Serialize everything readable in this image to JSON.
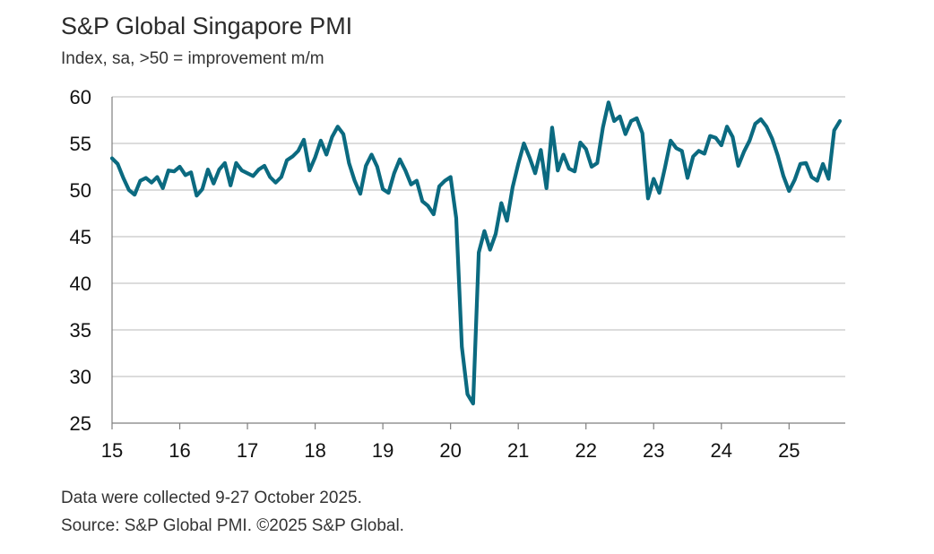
{
  "header": {
    "title": "S&P Global Singapore PMI",
    "subtitle": "Index, sa, >50 = improvement m/m"
  },
  "footer": {
    "note": "Data were collected 9-27 October 2025.",
    "source": "Source: S&P Global PMI. ©2025 S&P Global."
  },
  "colors": {
    "line": "#0b6a80",
    "grid": "#c8c8c8",
    "axis": "#7f7f7f"
  },
  "chart_data": {
    "type": "line",
    "title": "S&P Global Singapore PMI",
    "ylabel": "Index, sa, >50 = improvement m/m",
    "xlabel": "",
    "ylim": [
      25,
      60
    ],
    "yticks": [
      "25",
      "30",
      "35",
      "40",
      "45",
      "50",
      "55",
      "60"
    ],
    "xlim": [
      2015,
      2025.83
    ],
    "xticks": [
      "15",
      "16",
      "17",
      "18",
      "19",
      "20",
      "21",
      "22",
      "23",
      "24",
      "25"
    ],
    "grid": true,
    "series": [
      {
        "name": "Singapore PMI",
        "start_year": 2015,
        "freq": "monthly",
        "values": [
          53.4,
          52.8,
          51.3,
          50.0,
          49.5,
          51.0,
          51.3,
          50.8,
          51.4,
          50.2,
          52.1,
          52.0,
          52.5,
          51.6,
          51.9,
          49.4,
          50.1,
          52.2,
          50.7,
          52.2,
          52.9,
          50.5,
          52.9,
          52.1,
          51.8,
          51.5,
          52.2,
          52.6,
          51.4,
          50.8,
          51.4,
          53.2,
          53.6,
          54.2,
          55.4,
          52.1,
          53.5,
          55.3,
          53.8,
          55.7,
          56.8,
          56.0,
          52.9,
          51.0,
          49.6,
          52.6,
          53.8,
          52.5,
          50.1,
          49.7,
          51.8,
          53.3,
          52.1,
          50.6,
          51.0,
          48.8,
          48.3,
          47.4,
          50.4,
          51.0,
          51.4,
          47.0,
          33.2,
          28.1,
          27.1,
          43.3,
          45.6,
          43.6,
          45.3,
          48.6,
          46.7,
          50.3,
          52.8,
          55.0,
          53.5,
          51.8,
          54.3,
          50.2,
          56.7,
          52.1,
          53.8,
          52.3,
          52.0,
          55.1,
          54.4,
          52.5,
          52.9,
          56.7,
          59.4,
          57.4,
          57.9,
          56.0,
          57.4,
          57.7,
          56.1,
          49.1,
          51.2,
          49.7,
          52.4,
          55.3,
          54.5,
          54.2,
          51.3,
          53.6,
          54.2,
          53.9,
          55.8,
          55.6,
          54.8,
          56.8,
          55.7,
          52.6,
          54.1,
          55.3,
          57.1,
          57.6,
          56.8,
          55.5,
          53.7,
          51.5,
          49.9,
          51.1,
          52.8,
          52.9,
          51.4,
          51.0,
          52.8,
          51.2,
          56.4,
          57.4
        ]
      }
    ]
  }
}
